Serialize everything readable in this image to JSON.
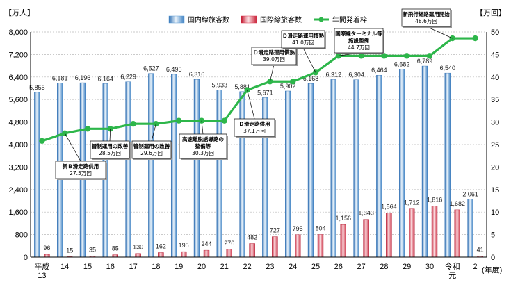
{
  "chart_data": {
    "type": "bar+line",
    "y_left_unit": "【万人】",
    "y_right_unit": "【万回】",
    "x_unit": "(年度)",
    "ylim_left": [
      0,
      8000
    ],
    "ylim_right": [
      0,
      50
    ],
    "left_ticks": [
      "0",
      "800",
      "1,600",
      "2,400",
      "3,200",
      "4,000",
      "4,800",
      "5,600",
      "6,400",
      "7,200",
      "8,000"
    ],
    "right_ticks": [
      "0",
      "5",
      "10",
      "15",
      "20",
      "25",
      "30",
      "35",
      "40",
      "45",
      "50"
    ],
    "categories": [
      [
        "平成",
        "13"
      ],
      [
        "14"
      ],
      [
        "15"
      ],
      [
        "16"
      ],
      [
        "17"
      ],
      [
        "18"
      ],
      [
        "19"
      ],
      [
        "20"
      ],
      [
        "21"
      ],
      [
        "22"
      ],
      [
        "23"
      ],
      [
        "24"
      ],
      [
        "25"
      ],
      [
        "26"
      ],
      [
        "27"
      ],
      [
        "28"
      ],
      [
        "29"
      ],
      [
        "30"
      ],
      [
        "令和",
        "元"
      ],
      [
        "2"
      ]
    ],
    "legend": [
      {
        "key": "domestic",
        "label": "国内線旅客数",
        "color": "#5b9bd5"
      },
      {
        "key": "international",
        "label": "国際線旅客数",
        "color": "#d9334a"
      },
      {
        "key": "slots",
        "label": "年間発着枠",
        "color": "#2db64a"
      }
    ],
    "series": [
      {
        "name": "国内線旅客数",
        "axis": "left",
        "values": [
          5855,
          6181,
          6196,
          6164,
          6229,
          6527,
          6495,
          6316,
          5933,
          5881,
          5671,
          5902,
          6168,
          6312,
          6304,
          6464,
          6682,
          6789,
          6540,
          2061
        ],
        "labels": [
          "5,855",
          "6,181",
          "6,196",
          "6,164",
          "6,229",
          "6,527",
          "6,495",
          "6,316",
          "5,933",
          "5,881",
          "5,671",
          "5,902",
          "6,168",
          "6,312",
          "6,304",
          "6,464",
          "6,682",
          "6,789",
          "6,540",
          "2,061"
        ]
      },
      {
        "name": "国際線旅客数",
        "axis": "left",
        "values": [
          96,
          15,
          35,
          85,
          130,
          162,
          195,
          244,
          276,
          482,
          727,
          795,
          804,
          1156,
          1343,
          1564,
          1712,
          1816,
          1682,
          41
        ],
        "labels": [
          "96",
          "15",
          "35",
          "85",
          "130",
          "162",
          "195",
          "244",
          "276",
          "482",
          "727",
          "795",
          "804",
          "1,156",
          "1,343",
          "1,564",
          "1,712",
          "1,816",
          "1,682",
          "41"
        ]
      },
      {
        "name": "年間発着枠",
        "axis": "right",
        "values": [
          25.8,
          27.5,
          28.5,
          28.5,
          29.6,
          29.6,
          30.3,
          30.3,
          30.3,
          37.1,
          39.0,
          39.0,
          41.0,
          44.7,
          44.7,
          44.7,
          44.7,
          44.7,
          48.6,
          48.6
        ]
      }
    ],
    "annotations": [
      {
        "lines": [
          "新Ｂ滑走路供用"
        ],
        "sub": "27.5万回",
        "point": 1
      },
      {
        "lines": [
          "管制運用の改善"
        ],
        "sub": "28.5万回",
        "point": 3
      },
      {
        "lines": [
          "管制運用の改善"
        ],
        "sub": "29.6万回",
        "point": 5
      },
      {
        "lines": [
          "高速離脱誘導路の",
          "整備等"
        ],
        "sub": "30.3万回",
        "point": 7
      },
      {
        "lines": [
          "Ｄ滑走路供用"
        ],
        "sub": "37.1万回",
        "point": 9
      },
      {
        "lines": [
          "Ｄ滑走路運用慣熟"
        ],
        "sub": "39.0万回",
        "point": 10
      },
      {
        "lines": [
          "Ｄ滑走路運用慣熟"
        ],
        "sub": "41.0万回",
        "point": 12
      },
      {
        "lines": [
          "国際線ターミナル等",
          "施設整備"
        ],
        "sub": "44.7万回",
        "point": 13
      },
      {
        "lines": [
          "新飛行経路運用開始"
        ],
        "sub": "48.6万回",
        "point": 18
      }
    ]
  }
}
